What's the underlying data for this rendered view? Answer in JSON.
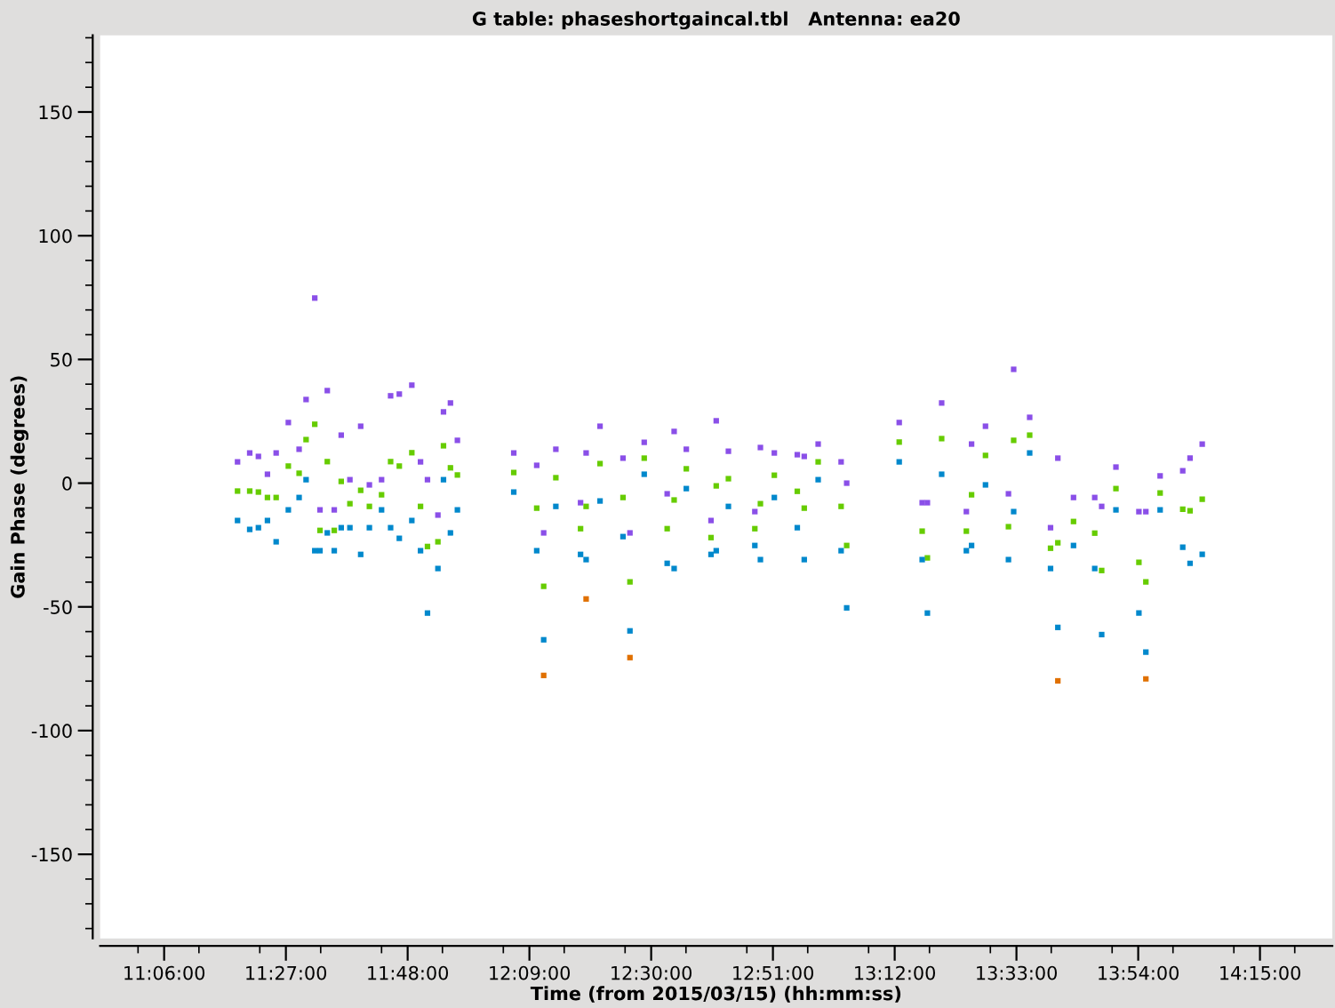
{
  "chart_data": {
    "type": "scatter",
    "title": "G table: phaseshortgaincal.tbl   Antenna: ea20",
    "xlabel": "Time (from 2015/03/15) (hh:mm:ss)",
    "ylabel": "Gain Phase (degrees)",
    "xlim": [
      10.916,
      14.458
    ],
    "ylim": [
      -184,
      181
    ],
    "xticks": [
      {
        "value": 11.1,
        "label": "11:06:00"
      },
      {
        "value": 11.45,
        "label": "11:27:00"
      },
      {
        "value": 11.8,
        "label": "11:48:00"
      },
      {
        "value": 12.15,
        "label": "12:09:00"
      },
      {
        "value": 12.5,
        "label": "12:30:00"
      },
      {
        "value": 12.85,
        "label": "12:51:00"
      },
      {
        "value": 13.2,
        "label": "13:12:00"
      },
      {
        "value": 13.55,
        "label": "13:33:00"
      },
      {
        "value": 13.9,
        "label": "13:54:00"
      },
      {
        "value": 14.25,
        "label": "14:15:00"
      }
    ],
    "yticks": [
      -150,
      -100,
      -50,
      0,
      50,
      100,
      150
    ],
    "grid": false,
    "marker": "square",
    "series": [
      {
        "color": "#8a4fe8",
        "x": [
          11.311,
          11.346,
          11.371,
          11.397,
          11.422,
          11.457,
          11.488,
          11.508,
          11.533,
          11.548,
          11.569,
          11.589,
          11.609,
          11.634,
          11.665,
          11.69,
          11.725,
          11.751,
          11.776,
          11.812,
          11.837,
          11.857,
          11.887,
          11.903,
          11.923,
          11.943,
          12.105,
          12.171,
          12.191,
          12.226,
          12.297,
          12.313,
          12.353,
          12.419,
          12.439,
          12.48,
          12.546,
          12.566,
          12.601,
          12.672,
          12.687,
          12.722,
          12.798,
          12.814,
          12.854,
          12.92,
          12.94,
          12.98,
          13.046,
          13.062,
          13.213,
          13.279,
          13.294,
          13.335,
          13.406,
          13.421,
          13.461,
          13.527,
          13.542,
          13.588,
          13.648,
          13.669,
          13.714,
          13.775,
          13.795,
          13.836,
          13.902,
          13.922,
          13.963,
          14.028,
          14.049,
          14.084
        ],
        "values": [
          8.6,
          12.2,
          10.8,
          3.6,
          12.2,
          24.5,
          13.7,
          33.8,
          74.8,
          -10.8,
          37.4,
          -10.8,
          19.4,
          1.4,
          23.0,
          -0.7,
          1.4,
          35.3,
          36.0,
          39.6,
          8.6,
          1.4,
          -12.9,
          28.8,
          32.4,
          17.3,
          12.2,
          7.2,
          -20.1,
          13.7,
          -7.9,
          12.2,
          23.0,
          10.1,
          -20.1,
          16.5,
          -4.3,
          20.9,
          13.7,
          -15.1,
          25.2,
          12.9,
          -11.5,
          14.4,
          12.2,
          11.5,
          10.8,
          15.8,
          8.6,
          0,
          24.5,
          -7.9,
          -7.9,
          32.4,
          -11.5,
          15.8,
          23.0,
          -4.3,
          46.0,
          26.6,
          -18.0,
          10.1,
          -5.8,
          -5.8,
          -9.4,
          6.5,
          -11.5,
          -11.5,
          2.9,
          5.0,
          10.1,
          15.8
        ]
      },
      {
        "color": "#66cc00",
        "x": [
          11.311,
          11.346,
          11.371,
          11.397,
          11.422,
          11.457,
          11.488,
          11.508,
          11.533,
          11.548,
          11.569,
          11.589,
          11.609,
          11.634,
          11.665,
          11.69,
          11.725,
          11.751,
          11.776,
          11.812,
          11.837,
          11.857,
          11.887,
          11.903,
          11.923,
          11.943,
          12.105,
          12.171,
          12.191,
          12.226,
          12.297,
          12.313,
          12.353,
          12.419,
          12.439,
          12.48,
          12.546,
          12.566,
          12.601,
          12.672,
          12.687,
          12.722,
          12.798,
          12.814,
          12.854,
          12.92,
          12.94,
          12.98,
          13.046,
          13.062,
          13.213,
          13.279,
          13.294,
          13.335,
          13.406,
          13.421,
          13.461,
          13.527,
          13.542,
          13.588,
          13.648,
          13.669,
          13.714,
          13.775,
          13.795,
          13.836,
          13.902,
          13.922,
          13.963,
          14.028,
          14.049,
          14.084
        ],
        "values": [
          -3.2,
          -3.2,
          -3.6,
          -5.8,
          -5.8,
          6.9,
          4.0,
          17.6,
          23.8,
          -19.1,
          8.7,
          -19.1,
          0.7,
          -8.3,
          -2.9,
          -9.4,
          -4.7,
          8.7,
          6.9,
          12.3,
          -9.4,
          -25.6,
          -23.7,
          15.1,
          6.2,
          3.3,
          4.3,
          -10.1,
          -41.7,
          2.2,
          -18.4,
          -9.4,
          7.9,
          -5.8,
          -39.9,
          10.1,
          -18.4,
          -6.8,
          5.8,
          -22.0,
          -1.1,
          1.8,
          -18.4,
          -8.3,
          3.2,
          -3.3,
          -10.1,
          8.6,
          -9.4,
          -25.2,
          16.6,
          -19.4,
          -30.2,
          18.0,
          -19.4,
          -4.7,
          11.2,
          -17.6,
          17.3,
          19.4,
          -26.3,
          -24.1,
          -15.5,
          -20.2,
          -35.3,
          -2.2,
          -32.0,
          -39.9,
          -4.0,
          -10.5,
          -11.2,
          -6.5
        ]
      },
      {
        "color": "#0088cc",
        "x": [
          11.311,
          11.346,
          11.371,
          11.397,
          11.422,
          11.457,
          11.488,
          11.508,
          11.533,
          11.548,
          11.569,
          11.589,
          11.609,
          11.634,
          11.665,
          11.69,
          11.725,
          11.751,
          11.776,
          11.812,
          11.837,
          11.857,
          11.887,
          11.903,
          11.923,
          11.943,
          12.105,
          12.171,
          12.191,
          12.226,
          12.297,
          12.313,
          12.353,
          12.419,
          12.439,
          12.48,
          12.546,
          12.566,
          12.601,
          12.672,
          12.687,
          12.722,
          12.798,
          12.814,
          12.854,
          12.92,
          12.94,
          12.98,
          13.046,
          13.062,
          13.213,
          13.279,
          13.294,
          13.335,
          13.406,
          13.421,
          13.461,
          13.527,
          13.542,
          13.588,
          13.648,
          13.669,
          13.714,
          13.775,
          13.795,
          13.836,
          13.902,
          13.922,
          13.963,
          14.028,
          14.049,
          14.084
        ],
        "values": [
          -15.1,
          -18.7,
          -18.0,
          -15.1,
          -23.7,
          -10.8,
          -5.8,
          1.4,
          -27.3,
          -27.3,
          -20.1,
          -27.3,
          -18.0,
          -18.0,
          -28.8,
          -18.0,
          -10.8,
          -18.0,
          -22.3,
          -15.1,
          -27.3,
          -52.5,
          -34.5,
          1.4,
          -20.1,
          -10.8,
          -3.6,
          -27.3,
          -63.3,
          -9.4,
          -28.8,
          -30.9,
          -7.2,
          -21.6,
          -59.7,
          3.6,
          -32.4,
          -34.5,
          -2.2,
          -28.8,
          -27.3,
          -9.4,
          -25.2,
          -30.9,
          -5.8,
          -18.0,
          -30.9,
          1.4,
          -27.3,
          -50.4,
          8.6,
          -30.9,
          -52.5,
          3.6,
          -27.3,
          -25.2,
          -0.7,
          -30.9,
          -11.5,
          12.2,
          -34.5,
          -58.3,
          -25.2,
          -34.5,
          -61.2,
          -10.8,
          -52.5,
          -68.3,
          -10.8,
          -25.9,
          -32.4,
          -28.8
        ]
      },
      {
        "color": "#e07000",
        "x": [
          12.191,
          12.313,
          12.439,
          13.669,
          13.922
        ],
        "values": [
          -77.7,
          -46.8,
          -70.5,
          -79.9,
          -79.1
        ]
      }
    ]
  }
}
